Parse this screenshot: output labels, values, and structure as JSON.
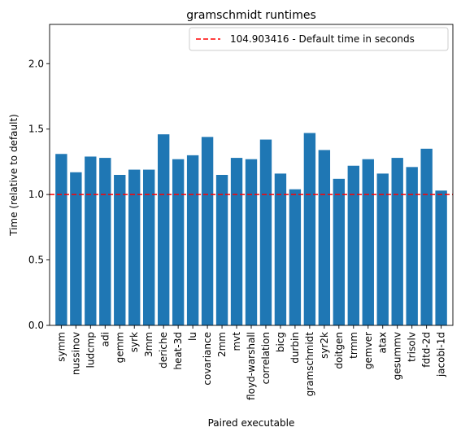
{
  "chart_data": {
    "type": "bar",
    "title": "gramschmidt runtimes",
    "xlabel": "Paired executable",
    "ylabel": "Time (relative to default)",
    "ylim": [
      0,
      2.3
    ],
    "yticks": [
      "0.0",
      "0.5",
      "1.0",
      "1.5",
      "2.0"
    ],
    "ytick_values": [
      0,
      0.5,
      1.0,
      1.5,
      2.0
    ],
    "categories": [
      "symm",
      "nussinov",
      "ludcmp",
      "adi",
      "gemm",
      "syrk",
      "3mm",
      "deriche",
      "heat-3d",
      "lu",
      "covariance",
      "2mm",
      "mvt",
      "floyd-warshall",
      "correlation",
      "bicg",
      "durbin",
      "gramschmidt",
      "syr2k",
      "doitgen",
      "trmm",
      "gemver",
      "atax",
      "gesummv",
      "trisolv",
      "fdtd-2d",
      "jacobi-1d"
    ],
    "values": [
      1.31,
      1.17,
      1.29,
      1.28,
      1.15,
      1.19,
      1.19,
      1.46,
      1.27,
      1.3,
      1.44,
      1.15,
      1.28,
      1.27,
      1.42,
      1.16,
      1.04,
      1.47,
      1.34,
      1.12,
      1.22,
      1.27,
      1.16,
      1.28,
      1.21,
      1.35,
      1.03
    ],
    "bar_color": "#1f77b4",
    "reference_line": {
      "y": 1.0,
      "color": "#ff0000",
      "style": "dashed",
      "label": "104.903416 - Default time in seconds"
    },
    "legend_position": "top-right",
    "grid": false
  }
}
